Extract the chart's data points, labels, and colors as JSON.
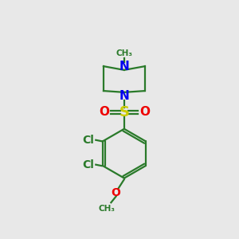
{
  "background_color": "#e8e8e8",
  "bond_color": "#2a7a2a",
  "n_color": "#0000ee",
  "s_color": "#cccc00",
  "o_color": "#ee0000",
  "cl_color": "#2a7a2a",
  "line_width": 1.6,
  "figsize": [
    3.0,
    3.0
  ],
  "dpi": 100,
  "xlim": [
    0,
    10
  ],
  "ylim": [
    0,
    10
  ]
}
